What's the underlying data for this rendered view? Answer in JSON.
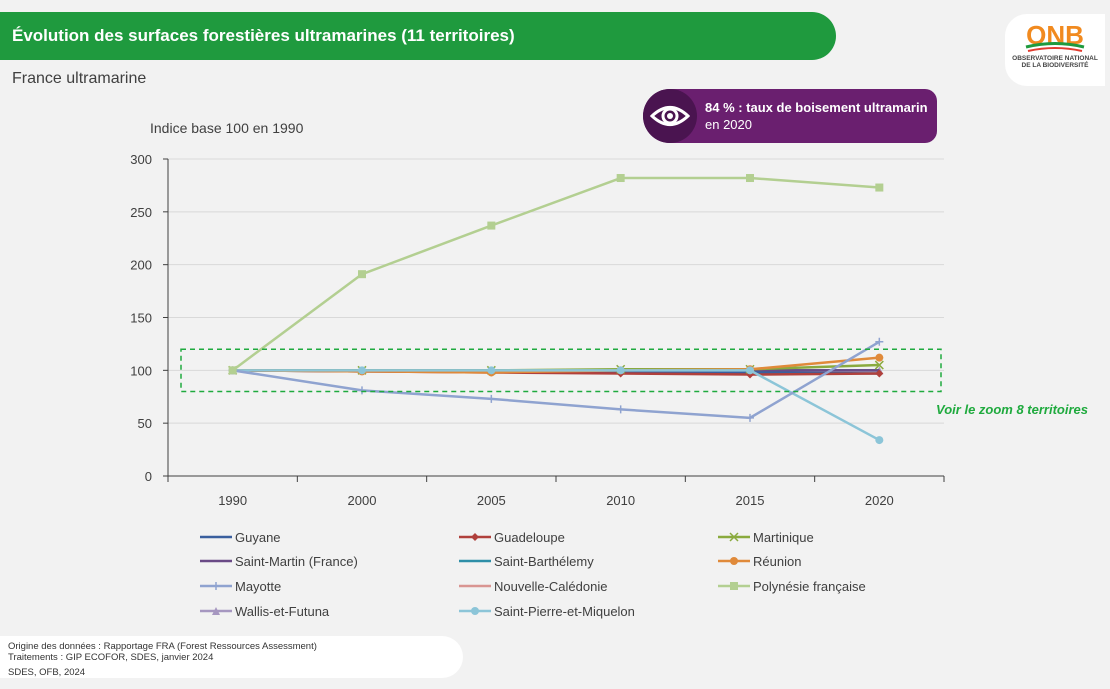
{
  "header": {
    "title": "Évolution des surfaces forestières ultramarines (11 territoires)",
    "subtitle": "France ultramarine"
  },
  "logo": {
    "name": "ONB",
    "line1": "OBSERVATOIRE NATIONAL",
    "line2": "DE LA BIODIVERSITÉ"
  },
  "callout": {
    "icon": "eye-icon",
    "bold_text": "84 % : taux de boisement ultramarin",
    "rest_text": " en 2020"
  },
  "zoom_note": "Voir le zoom 8 territoires",
  "footer": {
    "source": "Origine des données : Rapportage FRA (Forest Ressources Assessment)",
    "processing": "Traitements : GIP ECOFOR, SDES, janvier 2024",
    "credits": "SDES, OFB, 2024"
  },
  "colors": {
    "title_bar": "#1f9a3e",
    "callout": "#6a1f6f",
    "zoom_box": "#1faa3e"
  },
  "chart_data": {
    "type": "line",
    "ylabel": "Indice base 100 en 1990",
    "categories": [
      "1990",
      "2000",
      "2005",
      "2010",
      "2015",
      "2020"
    ],
    "ylim": [
      0,
      300
    ],
    "yticks": [
      0,
      50,
      100,
      150,
      200,
      250,
      300
    ],
    "legend_position": "bottom",
    "zoom_range": [
      80,
      120
    ],
    "series": [
      {
        "name": "Guyane",
        "color": "#3a5f9e",
        "marker": "none",
        "values": [
          100,
          99,
          99,
          98,
          98,
          97
        ]
      },
      {
        "name": "Guadeloupe",
        "color": "#b0403c",
        "marker": "diamond",
        "values": [
          100,
          99,
          98,
          97,
          96,
          97
        ]
      },
      {
        "name": "Martinique",
        "color": "#8aaa3e",
        "marker": "x",
        "values": [
          100,
          100,
          100,
          101,
          101,
          105
        ]
      },
      {
        "name": "Saint-Martin (France)",
        "color": "#6a4a86",
        "marker": "none",
        "values": [
          100,
          100,
          100,
          100,
          100,
          100
        ]
      },
      {
        "name": "Saint-Barthélemy",
        "color": "#2f8fa8",
        "marker": "none",
        "values": [
          100,
          100,
          100,
          100,
          100,
          100
        ]
      },
      {
        "name": "Réunion",
        "color": "#e08a3a",
        "marker": "circle",
        "values": [
          100,
          99,
          98,
          100,
          101,
          112
        ]
      },
      {
        "name": "Mayotte",
        "color": "#8fa3d0",
        "marker": "plus",
        "values": [
          100,
          81,
          73,
          63,
          55,
          127
        ]
      },
      {
        "name": "Nouvelle-Calédonie",
        "color": "#d99592",
        "marker": "none",
        "values": [
          100,
          100,
          100,
          100,
          100,
          100
        ]
      },
      {
        "name": "Polynésie française",
        "color": "#b3cf91",
        "marker": "square",
        "values": [
          100,
          191,
          237,
          282,
          282,
          273
        ]
      },
      {
        "name": "Wallis-et-Futuna",
        "color": "#a697c0",
        "marker": "triangle",
        "values": [
          100,
          100,
          100,
          100,
          100,
          100
        ]
      },
      {
        "name": "Saint-Pierre-et-Miquelon",
        "color": "#8cc5d8",
        "marker": "circle",
        "values": [
          100,
          100,
          100,
          100,
          100,
          34
        ]
      }
    ]
  }
}
